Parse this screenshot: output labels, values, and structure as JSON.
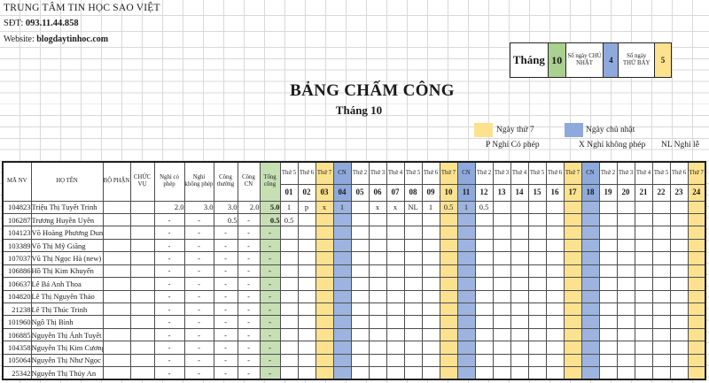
{
  "company": {
    "name": "TRUNG TÂM TIN HỌC SAO VIỆT",
    "phone_label": "SĐT: ",
    "phone": "093.11.44.858",
    "website_label": "Website: ",
    "website": "blogdaytinhoc.com"
  },
  "month_box": {
    "label": "Tháng",
    "value": "10",
    "sunday_label": "Số ngày CHỦ NHẬT",
    "sunday_count": "4",
    "saturday_label": "Số ngày THỨ BẢY",
    "saturday_count": "5"
  },
  "title": "BẢNG CHẤM CÔNG",
  "subtitle": "Tháng 10",
  "legend": {
    "saturday": "Ngày thứ 7",
    "sunday": "Ngày chủ nhật",
    "permitted": "P Nghỉ Có phép",
    "unpermitted": "X Nghỉ không phép",
    "holiday": "NL Nghỉ lễ"
  },
  "colors": {
    "saturday_highlight": "#FCE28F",
    "sunday_highlight": "#8EA9DB",
    "total_column_green": "#C6E0B4",
    "month_value_green": "#A9D08E"
  },
  "table": {
    "headers": {
      "ma_nv": "MÃ NV",
      "ho_ten": "HỌ TÊN",
      "bo_phan": "BỘ PHẬN",
      "chuc_vu": "CHỨC VỤ",
      "nghi_co_phep": "Nghỉ có phép",
      "nghi_khong_phep": "Nghỉ không phép",
      "cong_thuong": "Công thường",
      "cong_cn": "Công CN",
      "tong_cong": "Tổng công"
    },
    "days": [
      {
        "weekday": "Thứ 5",
        "date": "01",
        "type": "normal"
      },
      {
        "weekday": "Thứ 6",
        "date": "02",
        "type": "normal"
      },
      {
        "weekday": "Thứ 7",
        "date": "03",
        "type": "sat"
      },
      {
        "weekday": "CN",
        "date": "04",
        "type": "sun"
      },
      {
        "weekday": "Thứ 2",
        "date": "05",
        "type": "normal"
      },
      {
        "weekday": "Thứ 3",
        "date": "06",
        "type": "normal"
      },
      {
        "weekday": "Thứ 4",
        "date": "07",
        "type": "normal"
      },
      {
        "weekday": "Thứ 5",
        "date": "08",
        "type": "normal"
      },
      {
        "weekday": "Thứ 6",
        "date": "09",
        "type": "normal"
      },
      {
        "weekday": "Thứ 7",
        "date": "10",
        "type": "sat"
      },
      {
        "weekday": "CN",
        "date": "11",
        "type": "sun"
      },
      {
        "weekday": "Thứ 2",
        "date": "12",
        "type": "normal"
      },
      {
        "weekday": "Thứ 3",
        "date": "13",
        "type": "normal"
      },
      {
        "weekday": "Thứ 4",
        "date": "14",
        "type": "normal"
      },
      {
        "weekday": "Thứ 5",
        "date": "15",
        "type": "normal"
      },
      {
        "weekday": "Thứ 6",
        "date": "16",
        "type": "normal"
      },
      {
        "weekday": "Thứ 7",
        "date": "17",
        "type": "sat"
      },
      {
        "weekday": "CN",
        "date": "18",
        "type": "sun"
      },
      {
        "weekday": "Thứ 2",
        "date": "19",
        "type": "normal"
      },
      {
        "weekday": "Thứ 3",
        "date": "20",
        "type": "normal"
      },
      {
        "weekday": "Thứ 4",
        "date": "21",
        "type": "normal"
      },
      {
        "weekday": "Thứ 5",
        "date": "22",
        "type": "normal"
      },
      {
        "weekday": "Thứ 6",
        "date": "23",
        "type": "normal"
      },
      {
        "weekday": "Thứ 7",
        "date": "24",
        "type": "sat"
      }
    ],
    "rows": [
      {
        "id": "104823",
        "name": "Triệu Thị Tuyết Trinh",
        "bo_phan": "",
        "chuc_vu": "",
        "nghi_co_phep": "2.0",
        "nghi_khong_phep": "3.0",
        "cong_thuong": "3.0",
        "cong_cn": "2.0",
        "tong_cong": "5.0",
        "days": [
          "1",
          "p",
          "x",
          "1",
          "",
          "x",
          "x",
          "NL",
          "1",
          "0.5",
          "1",
          "0.5",
          "",
          "",
          "",
          "",
          "",
          "",
          "",
          "",
          "",
          "",
          "",
          ""
        ]
      },
      {
        "id": "106287",
        "name": "Trương Huyền Uyên",
        "bo_phan": "",
        "chuc_vu": "",
        "nghi_co_phep": "-",
        "nghi_khong_phep": "-",
        "cong_thuong": "0.5",
        "cong_cn": "-",
        "tong_cong": "0.5",
        "days": [
          "0.5",
          "",
          "",
          "",
          "",
          "",
          "",
          "",
          "",
          "",
          "",
          "",
          "",
          "",
          "",
          "",
          "",
          "",
          "",
          "",
          "",
          "",
          "",
          ""
        ]
      },
      {
        "id": "104123",
        "name": "Võ Hoàng Phương Dung",
        "bo_phan": "",
        "chuc_vu": "",
        "nghi_co_phep": "-",
        "nghi_khong_phep": "-",
        "cong_thuong": "-",
        "cong_cn": "-",
        "tong_cong": "-",
        "days": [
          "",
          "",
          "",
          "",
          "",
          "",
          "",
          "",
          "",
          "",
          "",
          "",
          "",
          "",
          "",
          "",
          "",
          "",
          "",
          "",
          "",
          "",
          "",
          ""
        ]
      },
      {
        "id": "103389",
        "name": "Võ Thị Mỹ Giăng",
        "bo_phan": "",
        "chuc_vu": "",
        "nghi_co_phep": "-",
        "nghi_khong_phep": "-",
        "cong_thuong": "-",
        "cong_cn": "-",
        "tong_cong": "-",
        "days": [
          "",
          "",
          "",
          "",
          "",
          "",
          "",
          "",
          "",
          "",
          "",
          "",
          "",
          "",
          "",
          "",
          "",
          "",
          "",
          "",
          "",
          "",
          "",
          ""
        ]
      },
      {
        "id": "107037",
        "name": "Vũ Thị Ngọc Hà (new)",
        "bo_phan": "",
        "chuc_vu": "",
        "nghi_co_phep": "-",
        "nghi_khong_phep": "-",
        "cong_thuong": "-",
        "cong_cn": "-",
        "tong_cong": "-",
        "days": [
          "",
          "",
          "",
          "",
          "",
          "",
          "",
          "",
          "",
          "",
          "",
          "",
          "",
          "",
          "",
          "",
          "",
          "",
          "",
          "",
          "",
          "",
          "",
          ""
        ]
      },
      {
        "id": "106886",
        "name": "Hồ Thị Kim Khuyến",
        "bo_phan": "",
        "chuc_vu": "",
        "nghi_co_phep": "-",
        "nghi_khong_phep": "-",
        "cong_thuong": "-",
        "cong_cn": "-",
        "tong_cong": "-",
        "days": [
          "",
          "",
          "",
          "",
          "",
          "",
          "",
          "",
          "",
          "",
          "",
          "",
          "",
          "",
          "",
          "",
          "",
          "",
          "",
          "",
          "",
          "",
          "",
          ""
        ]
      },
      {
        "id": "106637",
        "name": "Lê Bá Anh Thoa",
        "bo_phan": "",
        "chuc_vu": "",
        "nghi_co_phep": "-",
        "nghi_khong_phep": "-",
        "cong_thuong": "-",
        "cong_cn": "-",
        "tong_cong": "-",
        "days": [
          "",
          "",
          "",
          "",
          "",
          "",
          "",
          "",
          "",
          "",
          "",
          "",
          "",
          "",
          "",
          "",
          "",
          "",
          "",
          "",
          "",
          "",
          "",
          ""
        ]
      },
      {
        "id": "104820",
        "name": "Lê Thị Nguyên Thảo",
        "bo_phan": "",
        "chuc_vu": "",
        "nghi_co_phep": "-",
        "nghi_khong_phep": "-",
        "cong_thuong": "-",
        "cong_cn": "-",
        "tong_cong": "-",
        "days": [
          "",
          "",
          "",
          "",
          "",
          "",
          "",
          "",
          "",
          "",
          "",
          "",
          "",
          "",
          "",
          "",
          "",
          "",
          "",
          "",
          "",
          "",
          "",
          ""
        ]
      },
      {
        "id": "21238",
        "name": "Lê Thị Thúc Trinh",
        "bo_phan": "",
        "chuc_vu": "",
        "nghi_co_phep": "-",
        "nghi_khong_phep": "-",
        "cong_thuong": "-",
        "cong_cn": "-",
        "tong_cong": "-",
        "days": [
          "",
          "",
          "",
          "",
          "",
          "",
          "",
          "",
          "",
          "",
          "",
          "",
          "",
          "",
          "",
          "",
          "",
          "",
          "",
          "",
          "",
          "",
          "",
          ""
        ]
      },
      {
        "id": "101960",
        "name": "Ngô Thị Bình",
        "bo_phan": "",
        "chuc_vu": "",
        "nghi_co_phep": "-",
        "nghi_khong_phep": "-",
        "cong_thuong": "-",
        "cong_cn": "-",
        "tong_cong": "-",
        "days": [
          "",
          "",
          "",
          "",
          "",
          "",
          "",
          "",
          "",
          "",
          "",
          "",
          "",
          "",
          "",
          "",
          "",
          "",
          "",
          "",
          "",
          "",
          "",
          ""
        ]
      },
      {
        "id": "106885",
        "name": "Nguyễn Thị Ánh Tuyết",
        "bo_phan": "",
        "chuc_vu": "",
        "nghi_co_phep": "-",
        "nghi_khong_phep": "-",
        "cong_thuong": "-",
        "cong_cn": "-",
        "tong_cong": "-",
        "days": [
          "",
          "",
          "",
          "",
          "",
          "",
          "",
          "",
          "",
          "",
          "",
          "",
          "",
          "",
          "",
          "",
          "",
          "",
          "",
          "",
          "",
          "",
          "",
          ""
        ]
      },
      {
        "id": "104358",
        "name": "Nguyễn Thị Kim Cương",
        "bo_phan": "",
        "chuc_vu": "",
        "nghi_co_phep": "-",
        "nghi_khong_phep": "-",
        "cong_thuong": "-",
        "cong_cn": "-",
        "tong_cong": "-",
        "days": [
          "",
          "",
          "",
          "",
          "",
          "",
          "",
          "",
          "",
          "",
          "",
          "",
          "",
          "",
          "",
          "",
          "",
          "",
          "",
          "",
          "",
          "",
          "",
          ""
        ]
      },
      {
        "id": "105064",
        "name": "Nguyễn Thị Như Ngọc",
        "bo_phan": "",
        "chuc_vu": "",
        "nghi_co_phep": "-",
        "nghi_khong_phep": "-",
        "cong_thuong": "-",
        "cong_cn": "-",
        "tong_cong": "-",
        "days": [
          "",
          "",
          "",
          "",
          "",
          "",
          "",
          "",
          "",
          "",
          "",
          "",
          "",
          "",
          "",
          "",
          "",
          "",
          "",
          "",
          "",
          "",
          "",
          ""
        ]
      },
      {
        "id": "25342",
        "name": "Nguyễn Thị Thúy An",
        "bo_phan": "",
        "chuc_vu": "",
        "nghi_co_phep": "-",
        "nghi_khong_phep": "-",
        "cong_thuong": "-",
        "cong_cn": "-",
        "tong_cong": "-",
        "days": [
          "",
          "",
          "",
          "",
          "",
          "",
          "",
          "",
          "",
          "",
          "",
          "",
          "",
          "",
          "",
          "",
          "",
          "",
          "",
          "",
          "",
          "",
          "",
          ""
        ]
      }
    ]
  }
}
